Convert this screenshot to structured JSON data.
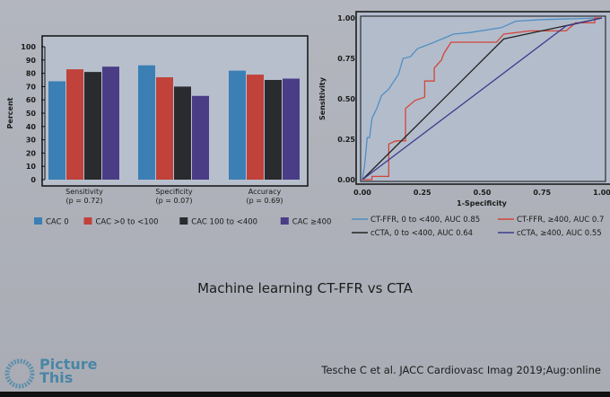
{
  "chart_data": [
    {
      "type": "bar",
      "ylabel": "Percent",
      "ylim": [
        0,
        100
      ],
      "yticks": [
        0,
        10,
        20,
        30,
        40,
        50,
        60,
        70,
        80,
        90,
        100
      ],
      "categories": [
        {
          "label": "Sensitivity",
          "sub": "(p = 0.72)"
        },
        {
          "label": "Specificity",
          "sub": "(p = 0.07)"
        },
        {
          "label": "Accuracy",
          "sub": "(p = 0.69)"
        }
      ],
      "series": [
        {
          "name": "CAC 0",
          "color": "#3b7fb4",
          "values": [
            74,
            86,
            82
          ]
        },
        {
          "name": "CAC >0 to <100",
          "color": "#c0423a",
          "values": [
            83,
            77,
            79
          ]
        },
        {
          "name": "CAC 100 to <400",
          "color": "#2a2b2e",
          "values": [
            81,
            70,
            75
          ]
        },
        {
          "name": "CAC ≥400",
          "color": "#4a3d86",
          "values": [
            85,
            63,
            76
          ]
        }
      ],
      "legend": "bottom"
    },
    {
      "type": "line",
      "xlabel": "1-Specificity",
      "ylabel": "Sensitivity",
      "xlim": [
        0,
        1
      ],
      "ylim": [
        0,
        1
      ],
      "xticks": [
        "0.00",
        "0.25",
        "0.50",
        "0.75",
        "1.00"
      ],
      "yticks": [
        "0.00",
        "0.25",
        "0.50",
        "0.75",
        "1.00"
      ],
      "series": [
        {
          "name": "CT-FFR, 0 to <400, AUC 0.85",
          "color": "#4f8fc4",
          "x": [
            0,
            0.01,
            0.02,
            0.03,
            0.04,
            0.06,
            0.08,
            0.11,
            0.15,
            0.17,
            0.2,
            0.23,
            0.3,
            0.38,
            0.45,
            0.58,
            0.64,
            0.75,
            1
          ],
          "y": [
            0,
            0.1,
            0.26,
            0.26,
            0.38,
            0.44,
            0.52,
            0.56,
            0.65,
            0.75,
            0.76,
            0.81,
            0.85,
            0.9,
            0.91,
            0.94,
            0.98,
            0.99,
            1
          ]
        },
        {
          "name": "CT-FFR, ≥400, AUC 0.7",
          "color": "#d2453a",
          "x": [
            0,
            0.04,
            0.04,
            0.11,
            0.11,
            0.14,
            0.18,
            0.18,
            0.22,
            0.26,
            0.26,
            0.3,
            0.3,
            0.33,
            0.34,
            0.37,
            0.56,
            0.59,
            0.7,
            0.85,
            0.89,
            0.97,
            0.97,
            1
          ],
          "y": [
            0,
            0,
            0.02,
            0.02,
            0.22,
            0.24,
            0.24,
            0.44,
            0.49,
            0.51,
            0.61,
            0.61,
            0.69,
            0.74,
            0.78,
            0.85,
            0.85,
            0.9,
            0.92,
            0.92,
            0.97,
            0.97,
            1,
            1
          ]
        },
        {
          "name": "cCTA, 0 to <400, AUC 0.64",
          "color": "#222222",
          "x": [
            0,
            0.59,
            1
          ],
          "y": [
            0,
            0.87,
            1
          ]
        },
        {
          "name": "cCTA, ≥400, AUC 0.55",
          "color": "#3e3a8c",
          "x": [
            0,
            0.85,
            1
          ],
          "y": [
            0,
            0.95,
            1
          ]
        }
      ],
      "legend": "bottom"
    }
  ],
  "slide": {
    "title": "Machine learning CT-FFR vs CTA",
    "citation": "Tesche C et al. JACC Cardiovasc Imag 2019;Aug:online",
    "logo": "Picture This"
  }
}
